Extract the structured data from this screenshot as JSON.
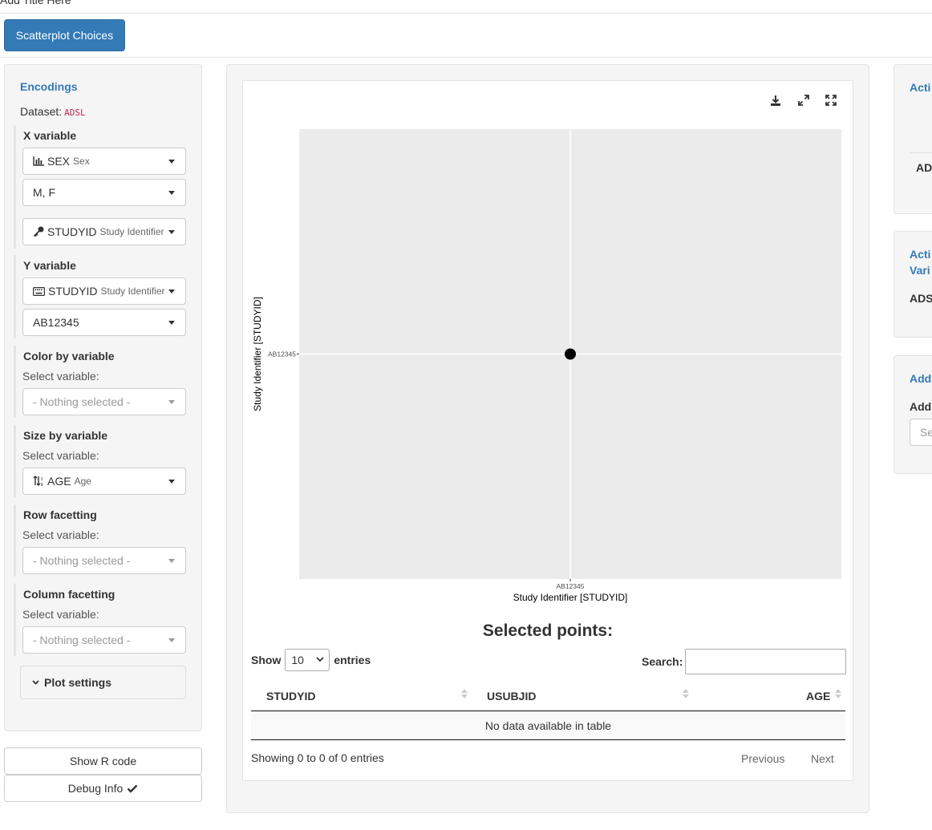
{
  "app": {
    "title": "Add Title Here",
    "choices_button": "Scatterplot Choices"
  },
  "encodings": {
    "title": "Encodings",
    "dataset_label": "Dataset:",
    "dataset_name": "ADSL",
    "x": {
      "label": "X variable",
      "var": "SEX",
      "var_desc": "Sex",
      "levels": "M, F",
      "key_var": "STUDYID",
      "key_desc": "Study Identifier"
    },
    "y": {
      "label": "Y variable",
      "var": "STUDYID",
      "var_desc": "Study Identifier",
      "levels": "AB12345"
    },
    "color": {
      "label": "Color by variable",
      "sub": "Select variable:",
      "placeholder": "- Nothing selected -"
    },
    "size": {
      "label": "Size by variable",
      "sub": "Select variable:",
      "var": "AGE",
      "var_desc": "Age"
    },
    "row_facet": {
      "label": "Row facetting",
      "sub": "Select variable:",
      "placeholder": "- Nothing selected -"
    },
    "col_facet": {
      "label": "Column facetting",
      "sub": "Select variable:",
      "placeholder": "- Nothing selected -"
    },
    "plot_settings": "Plot settings"
  },
  "sidebar_buttons": {
    "show_r_code": "Show R code",
    "debug_info": "Debug Info"
  },
  "chart_data": {
    "type": "scatter",
    "x_categories": [
      "AB12345"
    ],
    "y_categories": [
      "AB12345"
    ],
    "points": [
      {
        "x": "AB12345",
        "y": "AB12345"
      }
    ],
    "xlabel": "Study Identifier [STUDYID]",
    "ylabel": "Study Identifier [STUDYID]",
    "grid": true,
    "background": "#ebebeb"
  },
  "table": {
    "title": "Selected points:",
    "show": "Show",
    "page_length": "10",
    "entries": "entries",
    "search_label": "Search:",
    "columns": [
      "STUDYID",
      "USUBJID",
      "AGE"
    ],
    "empty": "No data available in table",
    "info": "Showing 0 to 0 of 0 entries",
    "previous": "Previous",
    "next": "Next"
  },
  "right_panel": {
    "box1_title": "Acti",
    "box1_item": "AD",
    "box2_title_1": "Acti",
    "box2_title_2": "Vari",
    "box2_item": "ADS",
    "box3_title": "Add",
    "box3_label": "Add",
    "box3_placeholder": "Se"
  },
  "colors": {
    "primary": "#337ab7",
    "code": "#c7254e",
    "panel": "#ebebeb"
  },
  "icons": [
    "chart-icon",
    "key-icon",
    "keyboard-icon",
    "sort-numeric-icon",
    "chevron-down-icon",
    "check-icon",
    "download-icon",
    "expand-icon",
    "fullscreen-icon"
  ]
}
